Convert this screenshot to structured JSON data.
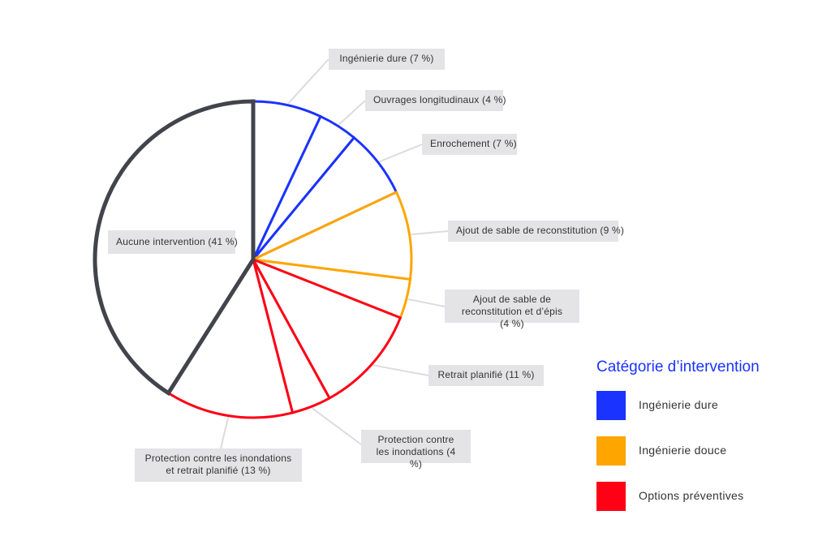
{
  "chart_data": {
    "type": "pie",
    "start": "top",
    "direction": "clockwise",
    "slices": [
      {
        "label": "Ingénierie dure (7 %)",
        "value": 7,
        "category": "Ingénierie dure"
      },
      {
        "label": "Ouvrages longitudinaux (4 %)",
        "value": 4,
        "category": "Ingénierie dure"
      },
      {
        "label": "Enrochement (7 %)",
        "value": 7,
        "category": "Ingénierie dure"
      },
      {
        "label": "Ajout de sable de reconstitution (9 %)",
        "value": 9,
        "category": "Ingénierie douce"
      },
      {
        "label": "Ajout de sable de reconstitution et d’épis (4 %)",
        "value": 4,
        "category": "Ingénierie douce"
      },
      {
        "label": "Retrait planifié (11 %)",
        "value": 11,
        "category": "Options préventives"
      },
      {
        "label": "Protection contre les inondations (4 %)",
        "value": 4,
        "category": "Options préventives"
      },
      {
        "label": "Protection contre les inondations et retrait planifié (13 %)",
        "value": 13,
        "category": "Options préventives"
      },
      {
        "label": "Aucune intervention (41 %)",
        "value": 41,
        "category": "none"
      }
    ],
    "legend": {
      "title": "Catégorie d’intervention",
      "placement": "bottom-right",
      "items": [
        {
          "label": "Ingénierie dure",
          "color": "#1a33ff"
        },
        {
          "label": "Ingénierie douce",
          "color": "#ffa500"
        },
        {
          "label": "Options préventives",
          "color": "#ff0015"
        }
      ]
    },
    "colors": {
      "Ingénierie dure": "#1a33ff",
      "Ingénierie douce": "#ffa500",
      "Options préventives": "#ff0015",
      "none": "#42444c"
    }
  }
}
